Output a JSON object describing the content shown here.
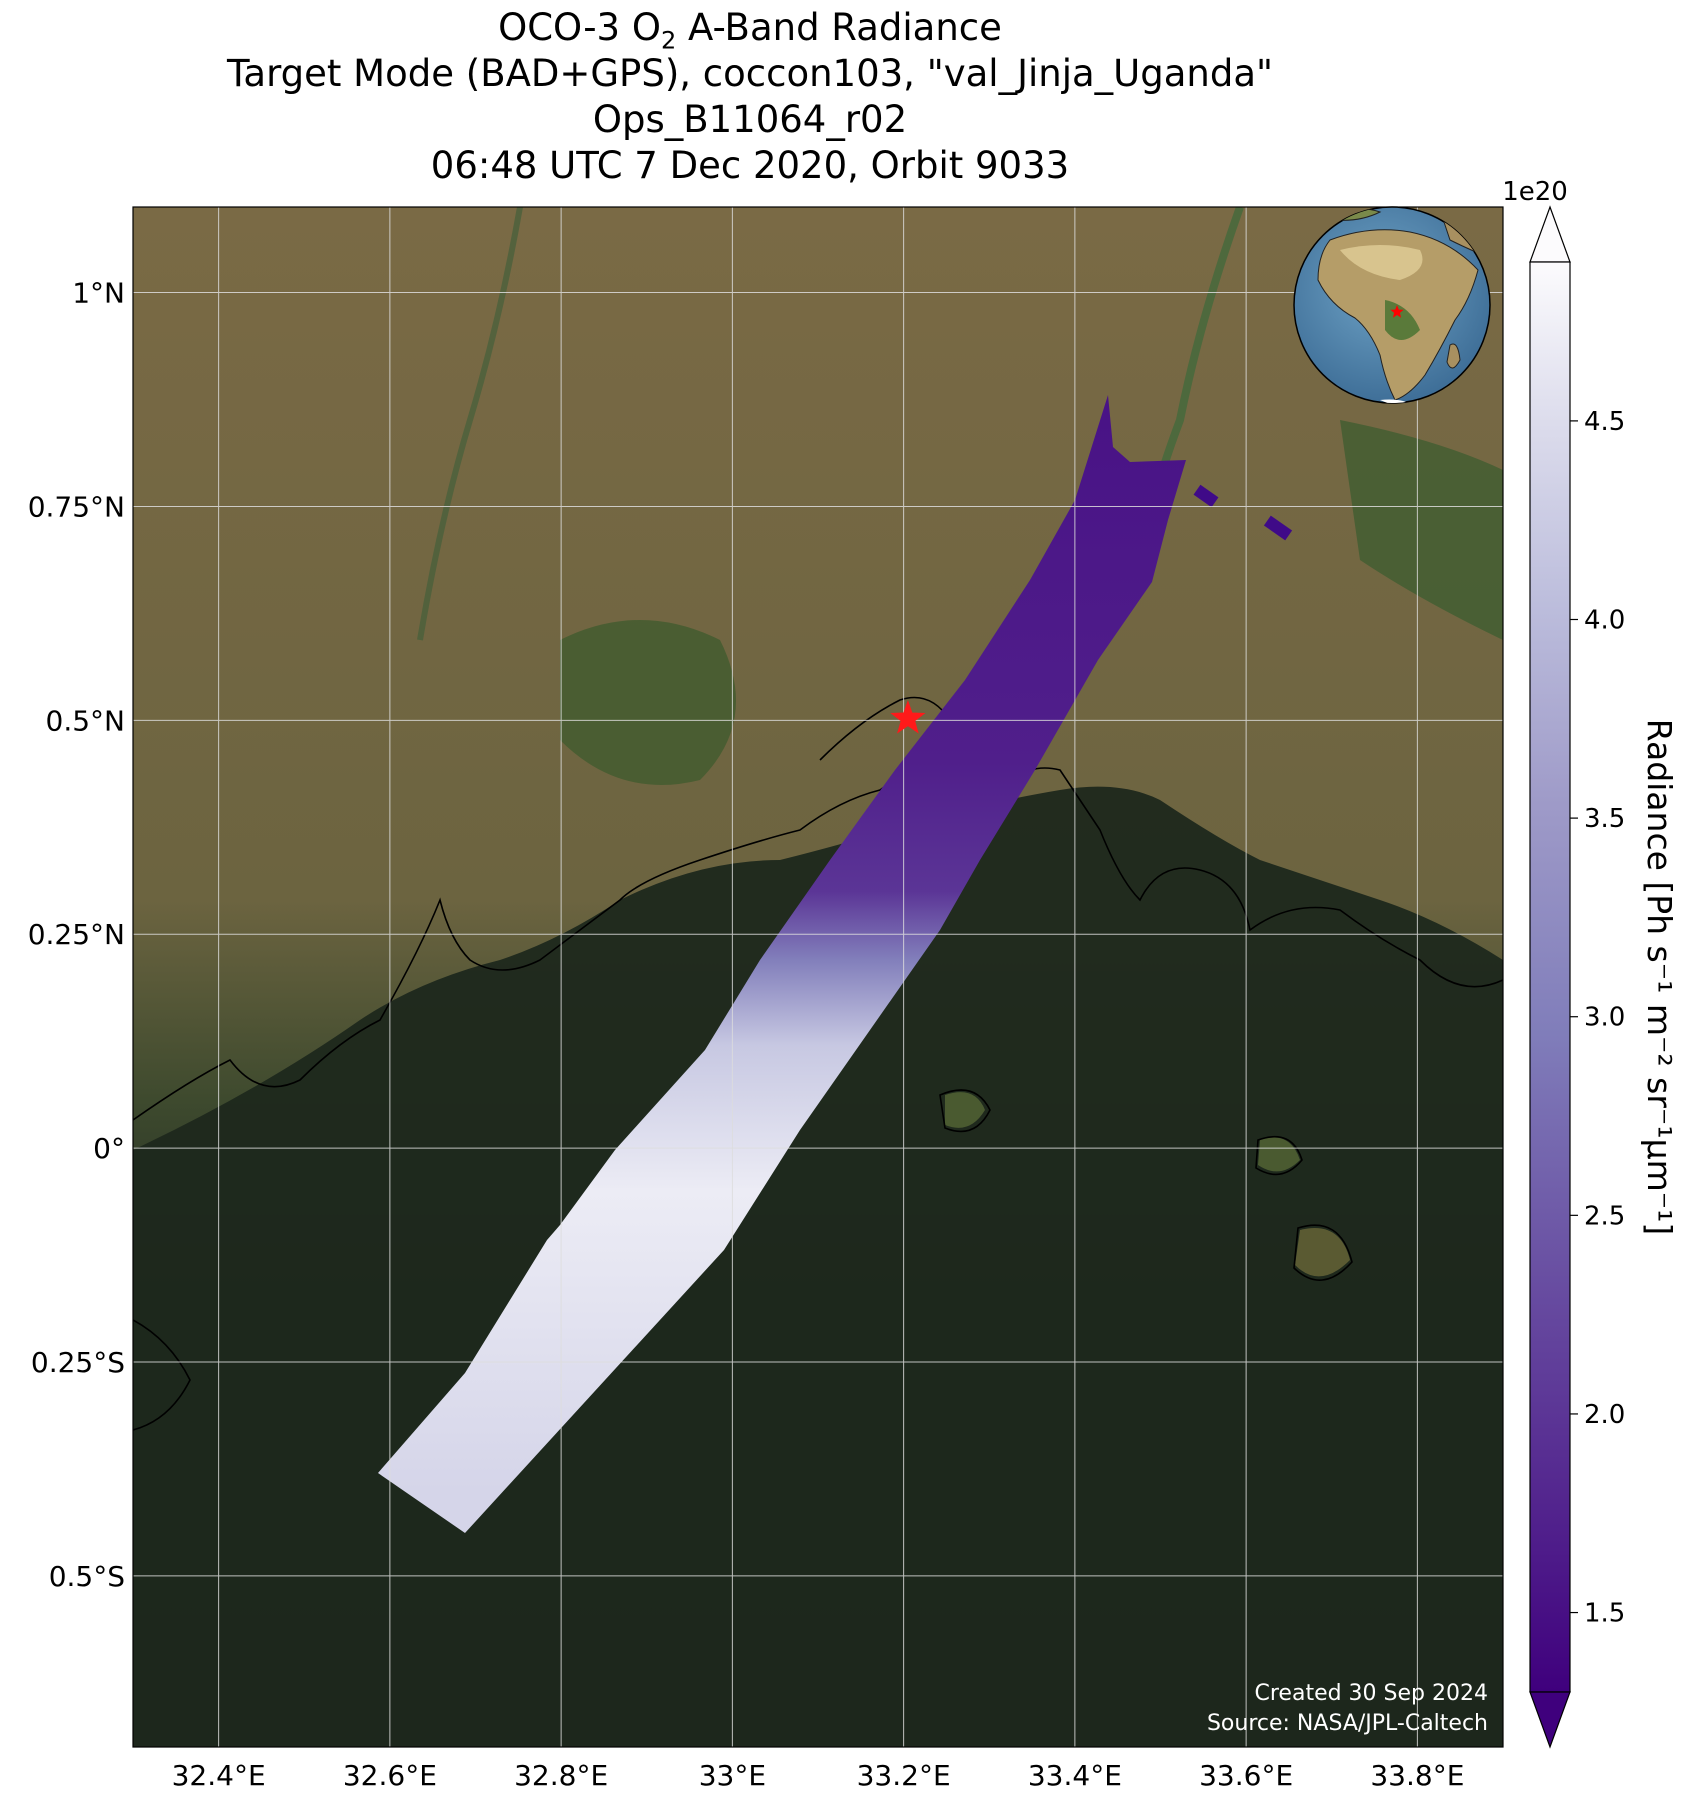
{
  "title": {
    "line1_prefix": "OCO-3 O",
    "line1_sub": "2",
    "line1_suffix": " A-Band Radiance",
    "line2": "Target Mode (BAD+GPS), coccon103, \"val_Jinja_Uganda\"",
    "line3": "Ops_B11064_r02",
    "line4": "06:48 UTC 7 Dec 2020, Orbit 9033"
  },
  "map": {
    "lon_range": [
      32.3,
      33.9
    ],
    "lat_range": [
      -0.7,
      1.1
    ],
    "lon_ticks": [
      {
        "value": 32.4,
        "label": "32.4°E"
      },
      {
        "value": 32.6,
        "label": "32.6°E"
      },
      {
        "value": 32.8,
        "label": "32.8°E"
      },
      {
        "value": 33.0,
        "label": "33°E"
      },
      {
        "value": 33.2,
        "label": "33.2°E"
      },
      {
        "value": 33.4,
        "label": "33.4°E"
      },
      {
        "value": 33.6,
        "label": "33.6°E"
      },
      {
        "value": 33.8,
        "label": "33.8°E"
      }
    ],
    "lat_ticks": [
      {
        "value": 1.0,
        "label": "1°N"
      },
      {
        "value": 0.75,
        "label": "0.75°N"
      },
      {
        "value": 0.5,
        "label": "0.5°N"
      },
      {
        "value": 0.25,
        "label": "0.25°N"
      },
      {
        "value": 0.0,
        "label": "0°"
      },
      {
        "value": -0.25,
        "label": "0.25°S"
      },
      {
        "value": -0.5,
        "label": "0.5°S"
      }
    ],
    "target": {
      "lon": 33.205,
      "lat": 0.502,
      "marker": "red-star"
    },
    "swath_color_stops": [
      {
        "lat": 0.85,
        "radiance_e20": 1.55
      },
      {
        "lat": 0.45,
        "radiance_e20": 1.7
      },
      {
        "lat": 0.3,
        "radiance_e20": 2.0
      },
      {
        "lat": 0.22,
        "radiance_e20": 3.0
      },
      {
        "lat": 0.12,
        "radiance_e20": 4.2
      },
      {
        "lat": -0.05,
        "radiance_e20": 4.7
      },
      {
        "lat": -0.4,
        "radiance_e20": 4.4
      }
    ],
    "colors": {
      "land": "#6e6440",
      "water": "#1e2a1e",
      "marker": "#ff0000"
    }
  },
  "colorbar": {
    "label": "Radiance [Ph s⁻¹ m⁻² sr⁻¹μm⁻¹]",
    "exponent": "1e20",
    "range": [
      1.3,
      4.9
    ],
    "extend": "both",
    "colormap": "Purples_r",
    "ticks": [
      {
        "value": 1.5,
        "label": "1.5"
      },
      {
        "value": 2.0,
        "label": "2.0"
      },
      {
        "value": 2.5,
        "label": "2.5"
      },
      {
        "value": 3.0,
        "label": "3.0"
      },
      {
        "value": 3.5,
        "label": "3.5"
      },
      {
        "value": 4.0,
        "label": "4.0"
      },
      {
        "value": 4.5,
        "label": "4.5"
      }
    ]
  },
  "inset_globe": {
    "description_icon": "globe-africa-icon",
    "marker": "red-star"
  },
  "credits": {
    "created": "Created 30 Sep 2024",
    "source": "Source: NASA/JPL-Caltech"
  }
}
